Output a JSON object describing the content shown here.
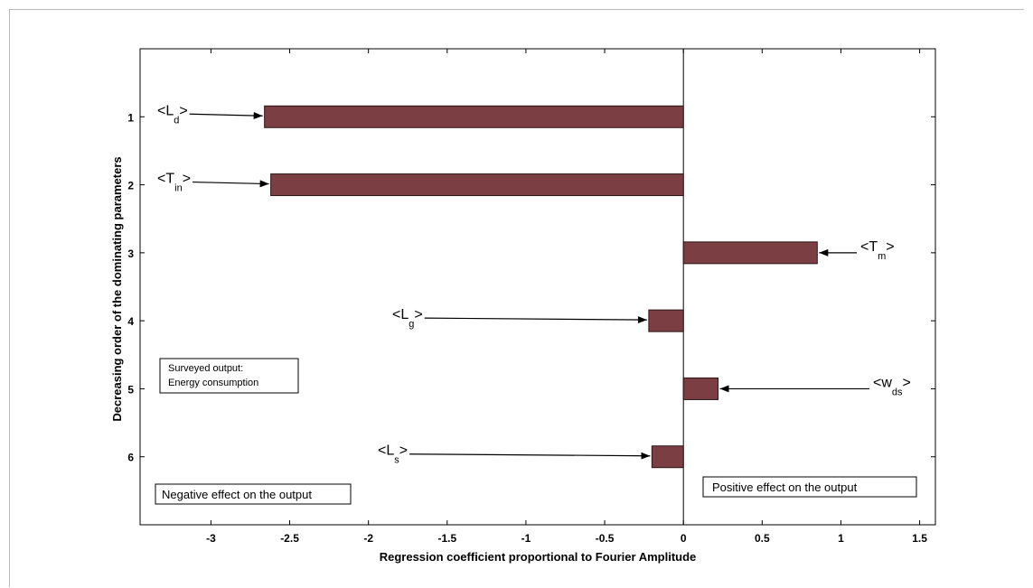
{
  "chart_data": {
    "type": "bar",
    "orientation": "horizontal",
    "categories": [
      "1",
      "2",
      "3",
      "4",
      "5",
      "6"
    ],
    "values": [
      -2.66,
      -2.62,
      0.85,
      -0.22,
      0.22,
      -0.2
    ],
    "xlabel": "Regression coefficient proportional to Fourier Amplitude",
    "ylabel": "Decreasing order of the dominating parameters",
    "xlim": [
      -3.45,
      1.6
    ],
    "ylim": [
      0,
      7
    ],
    "xticks": [
      "-3",
      "-2.5",
      "-2",
      "-1.5",
      "-1",
      "-0.5",
      "0",
      "0.5",
      "1",
      "1.5"
    ],
    "xtick_values": [
      -3,
      -2.5,
      -2,
      -1.5,
      -1,
      -0.5,
      0,
      0.5,
      1,
      1.5
    ],
    "bar_color": "#7b3f43",
    "grid": false,
    "annotations": [
      {
        "category": "1",
        "main": "L",
        "sub": "d"
      },
      {
        "category": "2",
        "main": "T",
        "sub": "in"
      },
      {
        "category": "3",
        "main": "T",
        "sub": "m"
      },
      {
        "category": "4",
        "main": "L",
        "sub": "g"
      },
      {
        "category": "5",
        "main": "w",
        "sub": "ds"
      },
      {
        "category": "6",
        "main": "L",
        "sub": "s"
      }
    ],
    "text_boxes": {
      "surveyed_line1": "Surveyed  output:",
      "surveyed_line2": "Energy consumption",
      "negative": "Negative effect on the output",
      "positive": "Positive effect on the output"
    }
  }
}
